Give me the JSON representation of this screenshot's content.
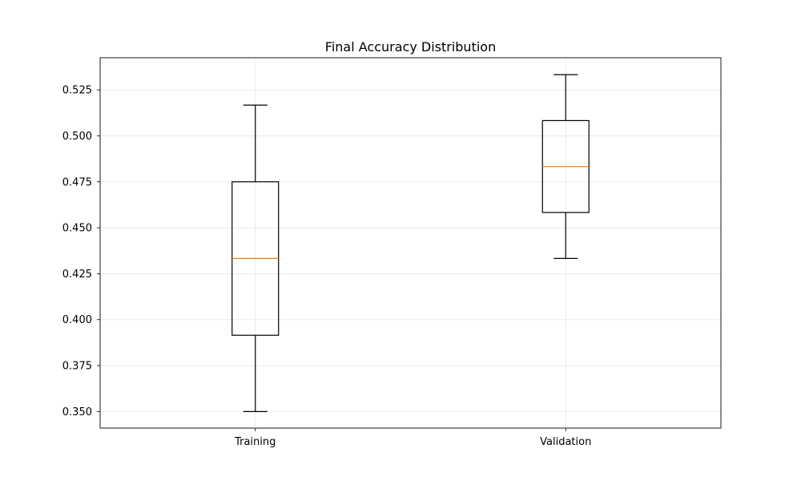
{
  "chart_data": {
    "type": "box",
    "title": "Final Accuracy Distribution",
    "xlabel": "",
    "ylabel": "",
    "categories": [
      "Training",
      "Validation"
    ],
    "series": [
      {
        "category": "Training",
        "whisker_low": 0.35,
        "q1": 0.3915,
        "median": 0.4333,
        "q3": 0.475,
        "whisker_high": 0.5167
      },
      {
        "category": "Validation",
        "whisker_low": 0.4333,
        "q1": 0.4583,
        "median": 0.4833,
        "q3": 0.5083,
        "whisker_high": 0.5333
      }
    ],
    "ylim": [
      0.341,
      0.5425
    ],
    "yticks": [
      0.35,
      0.375,
      0.4,
      0.425,
      0.45,
      0.475,
      0.5,
      0.525
    ],
    "ytick_labels": [
      "0.350",
      "0.375",
      "0.400",
      "0.425",
      "0.450",
      "0.475",
      "0.500",
      "0.525"
    ],
    "grid": true,
    "colors": {
      "box": "#000000",
      "median": "#ff7f0e",
      "grid": "#e6e6e6",
      "axes": "#000000"
    }
  }
}
